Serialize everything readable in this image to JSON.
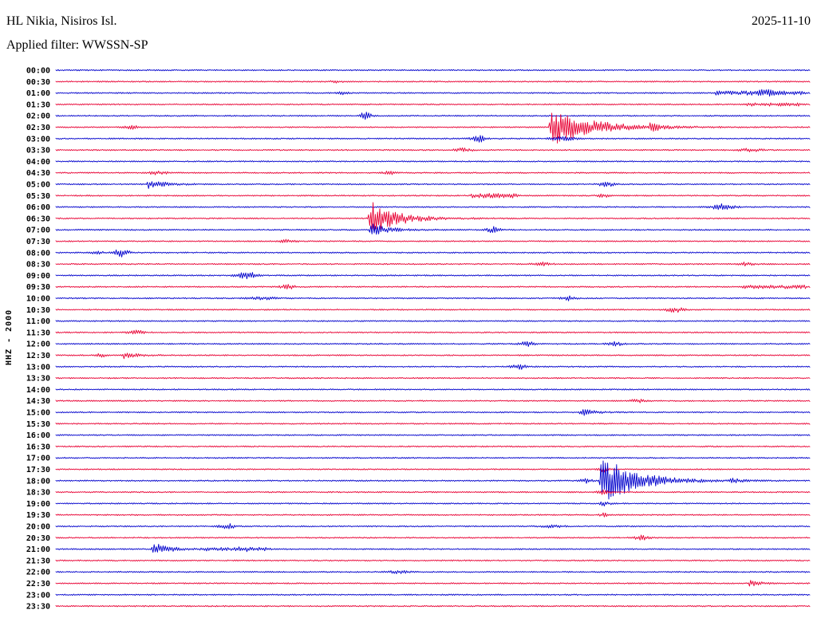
{
  "header": {
    "station": "HL Nikia, Nisiros Isl.",
    "date": "2025-11-10",
    "filter": "Applied filter: WWSSN-SP"
  },
  "side_label": "HHZ - 2000",
  "colors": {
    "blue": "#0000cc",
    "red": "#e80033"
  },
  "chart_data": {
    "type": "line",
    "title": "HL Nikia, Nisiros Isl. helicorder (HHZ), 2025-11-10, WWSSN-SP filter",
    "row_duration_min": 30,
    "x_range_min": [
      0,
      30
    ],
    "noise_amp": 0.85,
    "trace_color_cycle": [
      "blue",
      "red"
    ],
    "rows": [
      {
        "label": "00:00",
        "color": "blue",
        "events": []
      },
      {
        "label": "00:30",
        "color": "red",
        "events": [
          {
            "t": "blip",
            "m": 11.1,
            "w": 0.19,
            "amp": 1.5
          }
        ]
      },
      {
        "label": "01:00",
        "color": "blue",
        "events": [
          {
            "t": "patch",
            "m": 26.2,
            "dur": 3.6,
            "amp": 1.8
          },
          {
            "t": "blip",
            "m": 28.2,
            "w": 0.25,
            "amp": 2.2
          },
          {
            "t": "blip",
            "m": 11.4,
            "w": 0.19,
            "amp": 1.5
          }
        ]
      },
      {
        "label": "01:30",
        "color": "red",
        "events": [
          {
            "t": "patch",
            "m": 27.4,
            "dur": 2.4,
            "amp": 1.4
          }
        ]
      },
      {
        "label": "02:00",
        "color": "blue",
        "events": [
          {
            "t": "blip",
            "m": 12.3,
            "w": 0.16,
            "amp": 4
          }
        ]
      },
      {
        "label": "02:30",
        "color": "red",
        "events": [
          {
            "t": "blip",
            "m": 3.0,
            "w": 0.19,
            "amp": 2.5
          },
          {
            "t": "burst",
            "m": 19.6,
            "dur": 4.1,
            "amp": 30
          },
          {
            "t": "burst",
            "m": 23.5,
            "dur": 1.6,
            "amp": 5.5
          }
        ]
      },
      {
        "label": "03:00",
        "color": "blue",
        "events": [
          {
            "t": "blip",
            "m": 16.8,
            "w": 0.19,
            "amp": 4
          },
          {
            "t": "blip",
            "m": 20.2,
            "w": 0.38,
            "amp": 2
          }
        ]
      },
      {
        "label": "03:30",
        "color": "red",
        "events": [
          {
            "t": "blip",
            "m": 16.2,
            "w": 0.25,
            "amp": 2
          },
          {
            "t": "blip",
            "m": 27.6,
            "w": 0.32,
            "amp": 1.8
          }
        ]
      },
      {
        "label": "04:00",
        "color": "blue",
        "events": []
      },
      {
        "label": "04:30",
        "color": "red",
        "events": [
          {
            "t": "blip",
            "m": 4.1,
            "w": 0.32,
            "amp": 2
          },
          {
            "t": "blip",
            "m": 13.3,
            "w": 0.19,
            "amp": 2
          }
        ]
      },
      {
        "label": "05:00",
        "color": "blue",
        "events": [
          {
            "t": "burst",
            "m": 3.6,
            "dur": 1.9,
            "amp": 6
          },
          {
            "t": "blip",
            "m": 21.9,
            "w": 0.25,
            "amp": 2.5
          }
        ]
      },
      {
        "label": "05:30",
        "color": "red",
        "events": [
          {
            "t": "patch",
            "m": 16.5,
            "dur": 1.9,
            "amp": 2.2
          },
          {
            "t": "blip",
            "m": 21.8,
            "w": 0.19,
            "amp": 2
          }
        ]
      },
      {
        "label": "06:00",
        "color": "blue",
        "events": [
          {
            "t": "blip",
            "m": 26.5,
            "w": 0.32,
            "amp": 3.5
          }
        ]
      },
      {
        "label": "06:30",
        "color": "red",
        "events": [
          {
            "t": "burst",
            "m": 12.4,
            "dur": 3.0,
            "amp": 24
          }
        ]
      },
      {
        "label": "07:00",
        "color": "blue",
        "events": [
          {
            "t": "burst",
            "m": 12.45,
            "dur": 1.9,
            "amp": 9
          },
          {
            "t": "blip",
            "m": 17.4,
            "w": 0.19,
            "amp": 3.5
          }
        ]
      },
      {
        "label": "07:30",
        "color": "red",
        "events": [
          {
            "t": "blip",
            "m": 9.2,
            "w": 0.25,
            "amp": 1.6
          }
        ]
      },
      {
        "label": "08:00",
        "color": "blue",
        "events": [
          {
            "t": "blip",
            "m": 2.6,
            "w": 0.22,
            "amp": 5
          },
          {
            "t": "blip",
            "m": 1.65,
            "w": 0.16,
            "amp": 2
          }
        ]
      },
      {
        "label": "08:30",
        "color": "red",
        "events": [
          {
            "t": "blip",
            "m": 19.3,
            "w": 0.25,
            "amp": 1.8
          },
          {
            "t": "blip",
            "m": 27.4,
            "w": 0.25,
            "amp": 1.8
          }
        ]
      },
      {
        "label": "09:00",
        "color": "blue",
        "events": [
          {
            "t": "blip",
            "m": 7.6,
            "w": 0.29,
            "amp": 4
          }
        ]
      },
      {
        "label": "09:30",
        "color": "red",
        "events": [
          {
            "t": "blip",
            "m": 9.2,
            "w": 0.22,
            "amp": 2.5
          },
          {
            "t": "patch",
            "m": 27.3,
            "dur": 2.5,
            "amp": 1.5
          }
        ]
      },
      {
        "label": "10:00",
        "color": "blue",
        "events": [
          {
            "t": "blip",
            "m": 8.2,
            "w": 0.38,
            "amp": 1.6
          },
          {
            "t": "blip",
            "m": 20.4,
            "w": 0.19,
            "amp": 2.5
          }
        ]
      },
      {
        "label": "10:30",
        "color": "red",
        "events": [
          {
            "t": "blip",
            "m": 24.6,
            "w": 0.25,
            "amp": 3
          }
        ]
      },
      {
        "label": "11:00",
        "color": "blue",
        "events": []
      },
      {
        "label": "11:30",
        "color": "red",
        "events": [
          {
            "t": "blip",
            "m": 3.2,
            "w": 0.22,
            "amp": 2.5
          }
        ]
      },
      {
        "label": "12:00",
        "color": "blue",
        "events": [
          {
            "t": "blip",
            "m": 18.7,
            "w": 0.22,
            "amp": 3
          },
          {
            "t": "blip",
            "m": 22.2,
            "w": 0.22,
            "amp": 2.5
          }
        ]
      },
      {
        "label": "12:30",
        "color": "red",
        "events": [
          {
            "t": "burst",
            "m": 2.6,
            "dur": 1.4,
            "amp": 4.5
          },
          {
            "t": "blip",
            "m": 1.84,
            "w": 0.16,
            "amp": 2
          }
        ]
      },
      {
        "label": "13:00",
        "color": "blue",
        "events": [
          {
            "t": "blip",
            "m": 18.4,
            "w": 0.22,
            "amp": 3
          }
        ]
      },
      {
        "label": "13:30",
        "color": "red",
        "events": []
      },
      {
        "label": "14:00",
        "color": "blue",
        "events": []
      },
      {
        "label": "14:30",
        "color": "red",
        "events": [
          {
            "t": "blip",
            "m": 23.1,
            "w": 0.22,
            "amp": 2
          }
        ]
      },
      {
        "label": "15:00",
        "color": "blue",
        "events": [
          {
            "t": "burst",
            "m": 20.8,
            "dur": 1.4,
            "amp": 5
          }
        ]
      },
      {
        "label": "15:30",
        "color": "red",
        "events": []
      },
      {
        "label": "16:00",
        "color": "blue",
        "events": []
      },
      {
        "label": "16:30",
        "color": "red",
        "events": []
      },
      {
        "label": "17:00",
        "color": "blue",
        "events": []
      },
      {
        "label": "17:30",
        "color": "red",
        "events": [
          {
            "t": "blip",
            "m": 21.8,
            "w": 0.13,
            "amp": 3
          }
        ]
      },
      {
        "label": "18:00",
        "color": "blue",
        "events": [
          {
            "t": "blip",
            "m": 21.1,
            "w": 0.16,
            "amp": 3
          },
          {
            "t": "burst",
            "m": 21.6,
            "dur": 3.8,
            "amp": 34
          },
          {
            "t": "burst",
            "m": 26.7,
            "dur": 1.1,
            "amp": 4
          }
        ]
      },
      {
        "label": "18:30",
        "color": "red",
        "events": [
          {
            "t": "blip",
            "m": 21.8,
            "w": 0.16,
            "amp": 4
          }
        ]
      },
      {
        "label": "19:00",
        "color": "blue",
        "events": [
          {
            "t": "blip",
            "m": 21.8,
            "w": 0.16,
            "amp": 2.5
          }
        ]
      },
      {
        "label": "19:30",
        "color": "red",
        "events": [
          {
            "t": "blip",
            "m": 21.8,
            "w": 0.13,
            "amp": 2
          }
        ]
      },
      {
        "label": "20:00",
        "color": "blue",
        "events": [
          {
            "t": "blip",
            "m": 6.8,
            "w": 0.22,
            "amp": 3
          },
          {
            "t": "blip",
            "m": 19.7,
            "w": 0.32,
            "amp": 1.5
          }
        ]
      },
      {
        "label": "20:30",
        "color": "red",
        "events": [
          {
            "t": "blip",
            "m": 23.3,
            "w": 0.22,
            "amp": 2.5
          }
        ]
      },
      {
        "label": "21:00",
        "color": "blue",
        "events": [
          {
            "t": "burst",
            "m": 3.8,
            "dur": 1.7,
            "amp": 10
          },
          {
            "t": "burst",
            "m": 7.2,
            "dur": 0.9,
            "amp": 4
          },
          {
            "t": "patch",
            "m": 5.7,
            "dur": 2.9,
            "amp": 1.3
          }
        ]
      },
      {
        "label": "21:30",
        "color": "red",
        "events": []
      },
      {
        "label": "22:00",
        "color": "blue",
        "events": [
          {
            "t": "blip",
            "m": 13.6,
            "w": 0.32,
            "amp": 1.5
          }
        ]
      },
      {
        "label": "22:30",
        "color": "red",
        "events": [
          {
            "t": "burst",
            "m": 27.5,
            "dur": 1.1,
            "amp": 5
          }
        ]
      },
      {
        "label": "23:00",
        "color": "blue",
        "events": []
      },
      {
        "label": "23:30",
        "color": "red",
        "events": []
      }
    ]
  }
}
